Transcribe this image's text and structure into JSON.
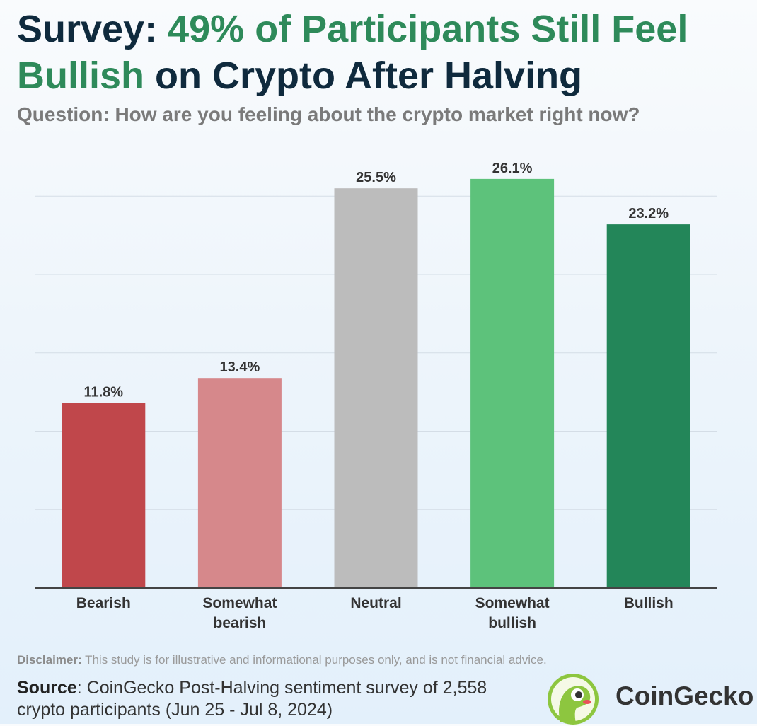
{
  "title": {
    "part1": "Survey: ",
    "part2": "49% of Participants Still Feel Bullish",
    "part3": " on Crypto After Halving"
  },
  "subtitle": "Question: How are you feeling about the crypto market right now?",
  "colors": {
    "title_dark": "#0f2a3d",
    "title_green": "#2e8a5a",
    "grid": "#d4dde6",
    "axis": "#444444",
    "value_label": "#333333"
  },
  "chart_data": {
    "type": "bar",
    "categories": [
      "Bearish",
      "Somewhat bearish",
      "Neutral",
      "Somewhat bullish",
      "Bullish"
    ],
    "category_lines": [
      [
        "Bearish"
      ],
      [
        "Somewhat",
        "bearish"
      ],
      [
        "Neutral"
      ],
      [
        "Somewhat",
        "bullish"
      ],
      [
        "Bullish"
      ]
    ],
    "values": [
      11.8,
      13.4,
      25.5,
      26.1,
      23.2
    ],
    "value_labels": [
      "11.8%",
      "13.4%",
      "25.5%",
      "26.1%",
      "23.2%"
    ],
    "bar_colors": [
      "#c0474b",
      "#d6888b",
      "#bcbcbc",
      "#5dc27b",
      "#238659"
    ],
    "ylim": [
      0,
      25
    ],
    "gridlines": [
      5,
      10,
      15,
      20,
      25
    ],
    "y_tick_labels_shown": false,
    "grid": true,
    "xlabel": "",
    "ylabel": ""
  },
  "disclaimer": {
    "label": "Disclaimer:",
    "text": " This study is for illustrative and informational purposes only, and is not financial advice."
  },
  "source": {
    "label": "Source",
    "text": ": CoinGecko Post-Halving sentiment survey of 2,558 crypto participants (Jun 25 - Jul 8, 2024)"
  },
  "logo": {
    "icon": "gecko-logo-icon",
    "text": "CoinGecko"
  }
}
